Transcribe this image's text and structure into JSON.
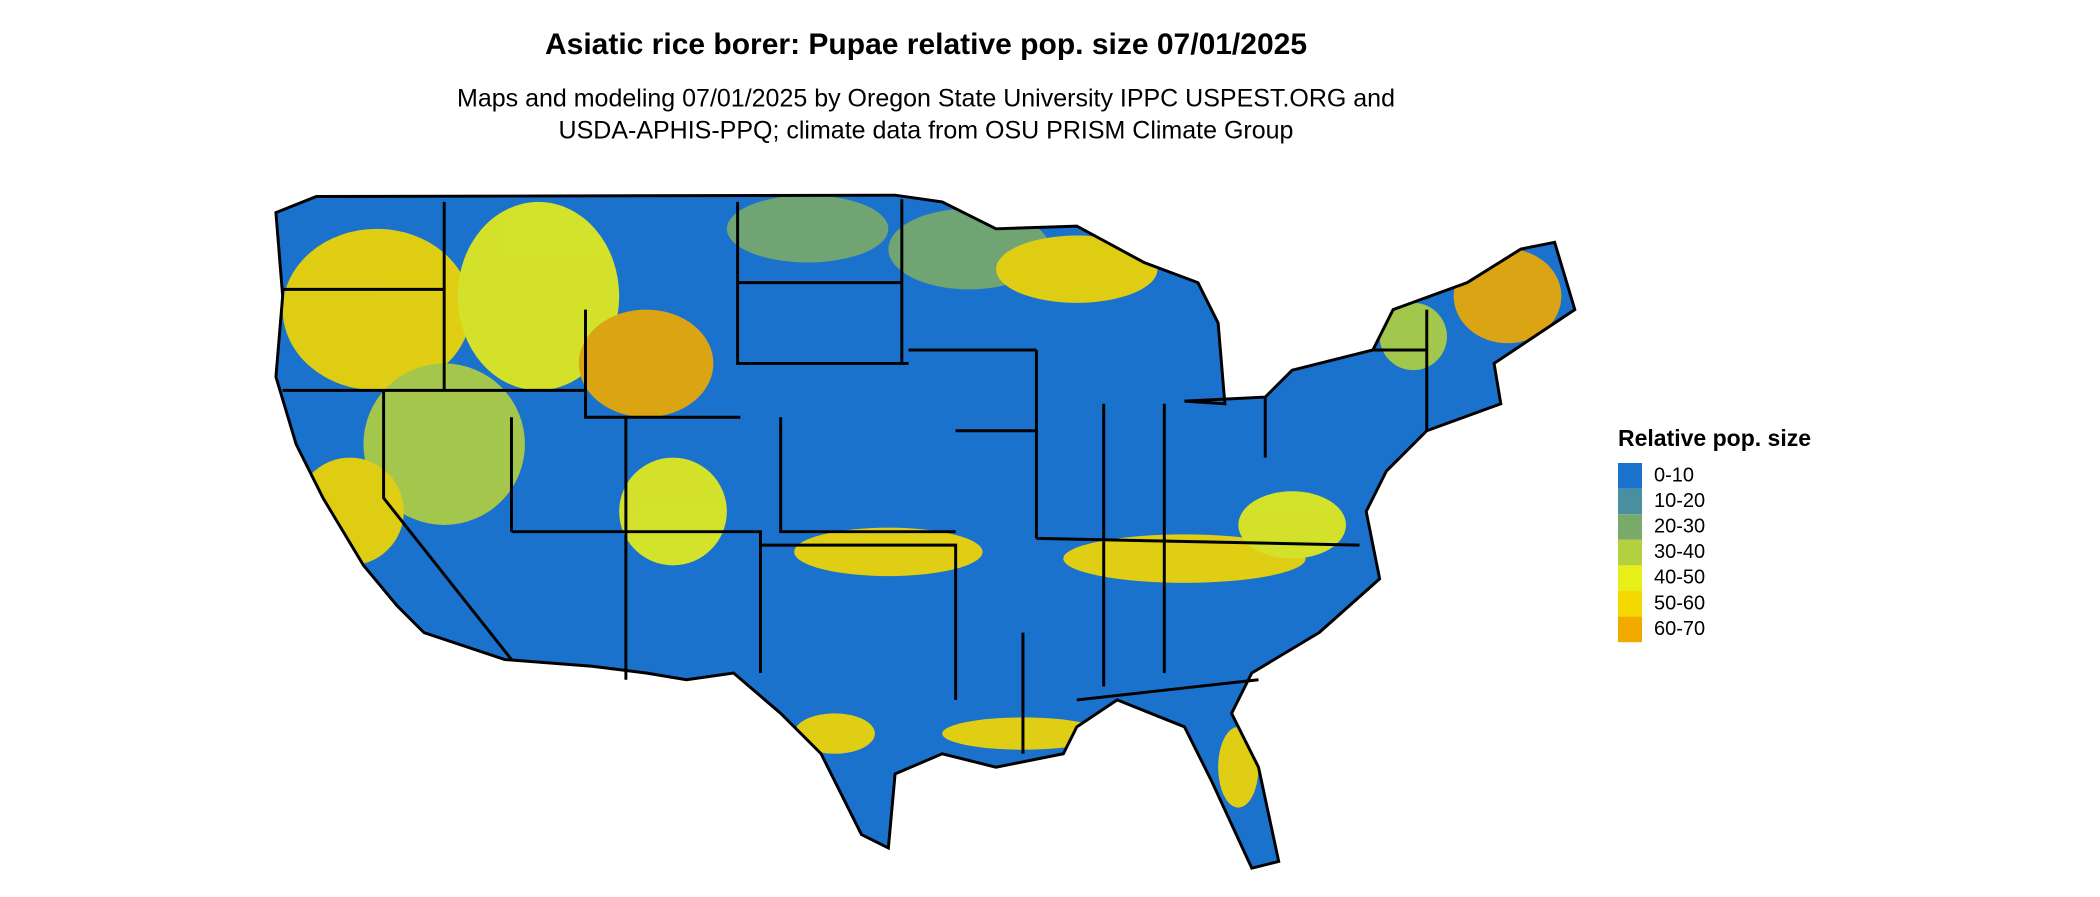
{
  "title": "Asiatic rice borer: Pupae relative pop. size 07/01/2025",
  "subtitle": [
    "Maps and modeling 07/01/2025 by Oregon State University IPPC USPEST.ORG and",
    "USDA-APHIS-PPQ; climate data from OSU PRISM Climate Group"
  ],
  "legend": {
    "title": "Relative pop. size",
    "items": [
      {
        "label": "0-10",
        "color": "#1a72cc"
      },
      {
        "label": "10-20",
        "color": "#4a8fa0"
      },
      {
        "label": "20-30",
        "color": "#7aaa6a"
      },
      {
        "label": "30-40",
        "color": "#b3d040"
      },
      {
        "label": "40-50",
        "color": "#e8ee1a"
      },
      {
        "label": "50-60",
        "color": "#f5d800"
      },
      {
        "label": "60-70",
        "color": "#f0aa00"
      }
    ]
  }
}
